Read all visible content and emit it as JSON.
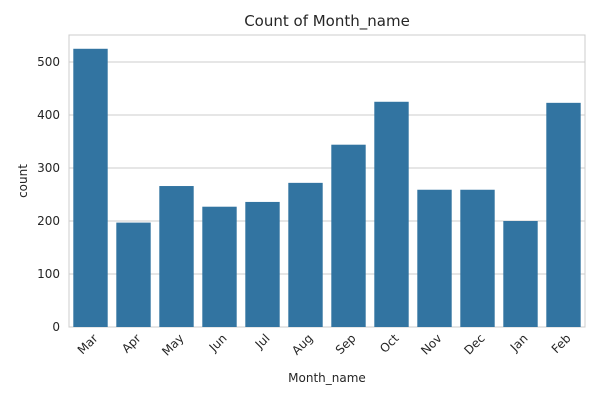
{
  "chart_data": {
    "type": "bar",
    "title": "Count of Month_name",
    "xlabel": "Month_name",
    "ylabel": "count",
    "categories": [
      "Mar",
      "Apr",
      "May",
      "Jun",
      "Jul",
      "Aug",
      "Sep",
      "Oct",
      "Nov",
      "Dec",
      "Jan",
      "Feb"
    ],
    "values": [
      525,
      197,
      266,
      227,
      236,
      272,
      344,
      425,
      259,
      259,
      200,
      423
    ],
    "ylim": [
      0,
      551
    ],
    "yticks": [
      0,
      100,
      200,
      300,
      400,
      500
    ],
    "grid": true,
    "bar_color": "#3274a1"
  }
}
